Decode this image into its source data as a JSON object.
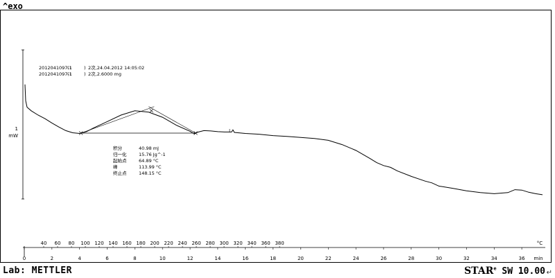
{
  "chart_data": {
    "type": "line",
    "title": "",
    "corner_label": "^exo",
    "y_scale": {
      "value": "1",
      "unit": "mW"
    },
    "x_axis_temperature": {
      "ticks": [
        40,
        60,
        80,
        100,
        120,
        140,
        160,
        180,
        200,
        220,
        240,
        260,
        280,
        300,
        320,
        340,
        360,
        380
      ],
      "unit": "°C"
    },
    "x_axis_time": {
      "ticks": [
        0,
        2,
        4,
        6,
        8,
        10,
        12,
        14,
        16,
        18,
        20,
        22,
        24,
        26,
        28,
        30,
        32,
        34,
        36
      ],
      "unit": "min"
    },
    "curve_time_min": [
      0.05,
      0.1,
      0.2,
      0.5,
      1,
      1.5,
      2,
      2.5,
      3,
      3.5,
      4,
      4.5,
      5,
      6,
      7,
      8,
      9,
      10,
      11,
      12,
      12.3,
      12.6,
      13,
      13.5,
      14,
      14.5,
      15,
      15.1,
      15.2,
      16,
      17,
      18,
      19,
      20,
      21,
      22,
      23,
      24,
      25,
      25.5,
      26,
      26.5,
      27,
      28,
      29,
      29.5,
      30,
      31,
      32,
      33,
      34,
      35,
      35.5,
      36,
      36.5,
      37,
      37.5
    ],
    "curve_signal_mw": [
      1.35,
      0.9,
      0.72,
      0.62,
      0.5,
      0.4,
      0.28,
      0.17,
      0.07,
      0.01,
      -0.01,
      0.04,
      0.14,
      0.32,
      0.5,
      0.62,
      0.58,
      0.44,
      0.22,
      0.05,
      -0.02,
      0.03,
      0.07,
      0.06,
      0.04,
      0.03,
      0.03,
      0.09,
      0.02,
      -0.01,
      -0.03,
      -0.07,
      -0.09,
      -0.12,
      -0.15,
      -0.2,
      -0.32,
      -0.48,
      -0.7,
      -0.82,
      -0.9,
      -0.95,
      -1.05,
      -1.2,
      -1.33,
      -1.38,
      -1.47,
      -1.53,
      -1.6,
      -1.65,
      -1.68,
      -1.65,
      -1.57,
      -1.58,
      -1.64,
      -1.68,
      -1.71
    ],
    "baseline_time_min": [
      4.1,
      12.4
    ],
    "baseline_signal_mw": [
      0.0,
      0.0
    ],
    "peak_time_min": 9.2,
    "sample_lines": [
      {
        "id": "2012041097-1",
        "seg": "(1",
        "close": ")",
        "info": "2次,24.04.2012 14:05:02"
      },
      {
        "id": "2012041097-1",
        "seg": "(1",
        "close": ")",
        "info": "2次,2.6000 mg"
      }
    ],
    "results": [
      {
        "label": "积分",
        "value": "40.98 mJ"
      },
      {
        "label": "归一化",
        "value": "15.76 Jg^-1"
      },
      {
        "label": "起始点",
        "value": "64.89 °C"
      },
      {
        "label": "峰",
        "value": "113.99 °C"
      },
      {
        "label": "终止点",
        "value": "148.15 °C"
      }
    ]
  },
  "footer": {
    "lab": "Lab: METTLER",
    "brand": "STAR",
    "reg": "e",
    "software": " SW 10.00"
  }
}
